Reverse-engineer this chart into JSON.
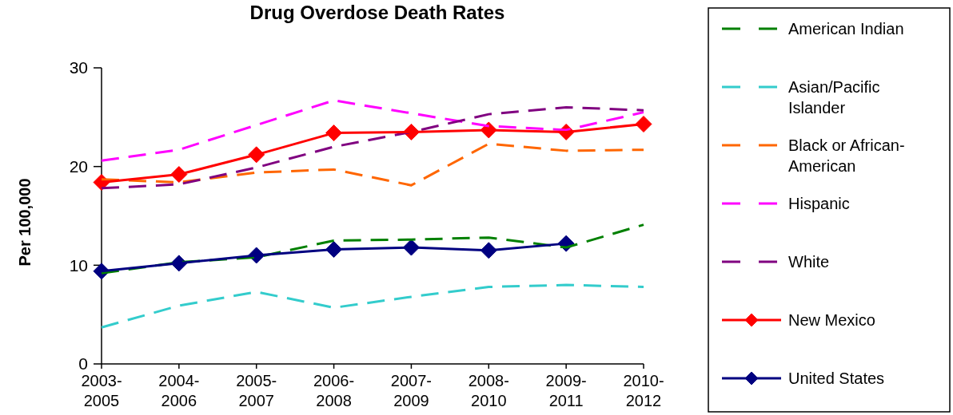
{
  "chart_data": {
    "type": "line",
    "title": "Drug Overdose Death Rates",
    "ylabel": "Per 100,000",
    "categories": [
      "2003-2005",
      "2004-2006",
      "2005-2007",
      "2006-2008",
      "2007-2009",
      "2008-2010",
      "2009-2011",
      "2010-2012"
    ],
    "series": [
      {
        "name": "American Indian",
        "color": "#008000",
        "line_style": "dashed",
        "marker": "none",
        "values": [
          9.2,
          10.3,
          10.8,
          12.5,
          12.6,
          12.8,
          11.8,
          14.1
        ]
      },
      {
        "name": "Asian/Pacific Islander",
        "color": "#33cccc",
        "line_style": "dashed",
        "marker": "none",
        "values": [
          3.7,
          5.9,
          7.3,
          5.7,
          6.8,
          7.8,
          8.0,
          7.8
        ]
      },
      {
        "name": "Black or African-American",
        "color": "#ff6600",
        "line_style": "dashed",
        "marker": "none",
        "values": [
          18.7,
          18.4,
          19.4,
          19.7,
          18.1,
          22.3,
          21.6,
          21.7
        ]
      },
      {
        "name": "Hispanic",
        "color": "#ff00ff",
        "line_style": "dashed",
        "marker": "none",
        "values": [
          20.6,
          21.7,
          24.2,
          26.7,
          25.4,
          24.1,
          23.7,
          25.5
        ]
      },
      {
        "name": "White",
        "color": "#800080",
        "line_style": "dashed",
        "marker": "none",
        "values": [
          17.8,
          18.2,
          19.9,
          22.0,
          23.5,
          25.3,
          26.0,
          25.7
        ]
      },
      {
        "name": "New Mexico",
        "color": "#ff0000",
        "line_style": "solid",
        "marker": "diamond",
        "values": [
          18.4,
          19.2,
          21.2,
          23.4,
          23.5,
          23.7,
          23.5,
          24.3
        ]
      },
      {
        "name": "United States",
        "color": "#000080",
        "line_style": "solid",
        "marker": "diamond",
        "values": [
          9.4,
          10.2,
          11.0,
          11.6,
          11.8,
          11.5,
          12.2,
          null
        ]
      }
    ],
    "ylim": [
      0,
      30
    ],
    "yticks": [
      0,
      10,
      20,
      30
    ],
    "grid": false,
    "legend": "right"
  }
}
